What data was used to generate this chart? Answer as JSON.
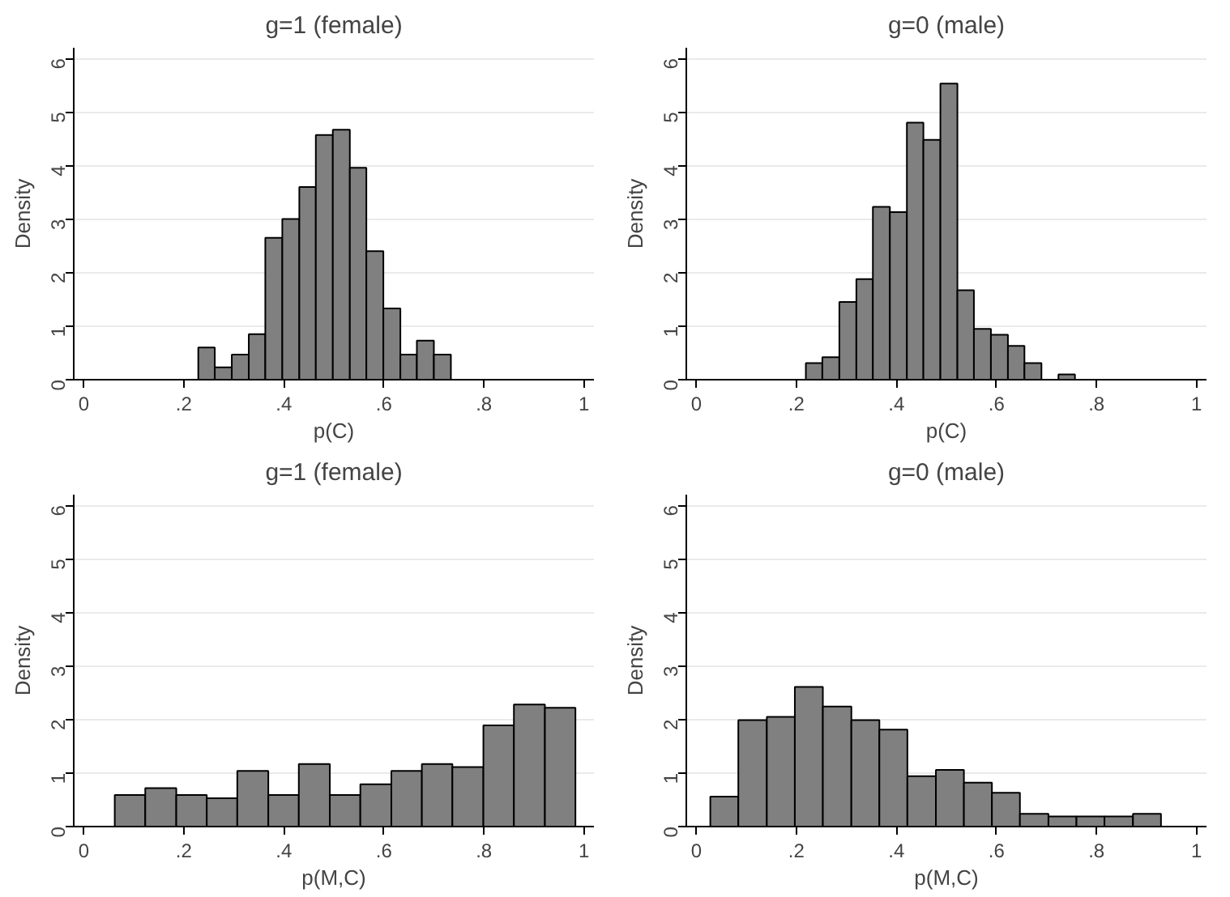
{
  "chart_data": [
    {
      "type": "histogram",
      "title": "g=1 (female)",
      "xlabel": "p(C)",
      "ylabel": "Density",
      "color": "#808080",
      "grid": "y",
      "bins": [
        0.229,
        0.262,
        0.296,
        0.33,
        0.363,
        0.397,
        0.431,
        0.464,
        0.498,
        0.532,
        0.565,
        0.599,
        0.633,
        0.666,
        0.7,
        0.734
      ],
      "values": [
        0.6,
        0.23,
        0.47,
        0.85,
        2.65,
        3.0,
        3.6,
        4.57,
        4.67,
        3.96,
        2.4,
        1.33,
        0.47,
        0.73,
        0.47
      ],
      "xlim": [
        -0.02,
        1.02
      ],
      "ylim": [
        0,
        6.2
      ],
      "xticks": [
        0,
        {
          "value": 0.2,
          "label": ".2"
        },
        {
          "value": 0.4,
          "label": ".4"
        },
        {
          "value": 0.6,
          "label": ".6"
        },
        {
          "value": 0.8,
          "label": ".8"
        },
        1
      ],
      "yticks": [
        0,
        1,
        2,
        3,
        4,
        5,
        6
      ]
    },
    {
      "type": "histogram",
      "title": "g=0 (male)",
      "xlabel": "p(C)",
      "ylabel": "Density",
      "color": "#808080",
      "grid": "y",
      "bins": [
        0.219,
        0.252,
        0.286,
        0.32,
        0.353,
        0.387,
        0.421,
        0.454,
        0.488,
        0.522,
        0.555,
        0.589,
        0.623,
        0.656,
        0.69,
        0.724,
        0.757
      ],
      "values": [
        0.31,
        0.42,
        1.45,
        1.88,
        3.23,
        3.13,
        4.8,
        4.48,
        5.53,
        1.67,
        0.95,
        0.84,
        0.63,
        0.31,
        null,
        0.1
      ],
      "xlim": [
        -0.02,
        1.02
      ],
      "ylim": [
        0,
        6.2
      ],
      "xticks": [
        0,
        {
          "value": 0.2,
          "label": ".2"
        },
        {
          "value": 0.4,
          "label": ".4"
        },
        {
          "value": 0.6,
          "label": ".6"
        },
        {
          "value": 0.8,
          "label": ".8"
        },
        1
      ],
      "yticks": [
        0,
        1,
        2,
        3,
        4,
        5,
        6
      ]
    },
    {
      "type": "histogram",
      "title": "g=1 (female)",
      "xlabel": "p(M,C)",
      "ylabel": "Density",
      "color": "#808080",
      "grid": "y",
      "bins": [
        0.062,
        0.123,
        0.185,
        0.246,
        0.307,
        0.369,
        0.43,
        0.492,
        0.553,
        0.615,
        0.676,
        0.737,
        0.799,
        0.86,
        0.922,
        0.983
      ],
      "values": [
        0.59,
        0.72,
        0.59,
        0.53,
        1.04,
        0.59,
        1.17,
        0.59,
        0.79,
        1.04,
        1.17,
        1.11,
        1.89,
        2.28,
        2.22
      ],
      "xlim": [
        -0.02,
        1.02
      ],
      "ylim": [
        0,
        6.2
      ],
      "xticks": [
        0,
        {
          "value": 0.2,
          "label": ".2"
        },
        {
          "value": 0.4,
          "label": ".4"
        },
        {
          "value": 0.6,
          "label": ".6"
        },
        {
          "value": 0.8,
          "label": ".8"
        },
        1
      ],
      "yticks": [
        0,
        1,
        2,
        3,
        4,
        5,
        6
      ]
    },
    {
      "type": "histogram",
      "title": "g=0 (male)",
      "xlabel": "p(M,C)",
      "ylabel": "Density",
      "color": "#808080",
      "grid": "y",
      "bins": [
        0.028,
        0.084,
        0.141,
        0.197,
        0.253,
        0.31,
        0.366,
        0.422,
        0.479,
        0.535,
        0.591,
        0.647,
        0.704,
        0.76,
        0.816,
        0.873,
        0.929
      ],
      "values": [
        0.56,
        1.99,
        2.05,
        2.61,
        2.24,
        1.99,
        1.81,
        0.94,
        1.06,
        0.82,
        0.63,
        0.24,
        0.19,
        0.19,
        0.19,
        0.24
      ],
      "xlim": [
        -0.02,
        1.02
      ],
      "ylim": [
        0,
        6.2
      ],
      "xticks": [
        0,
        {
          "value": 0.2,
          "label": ".2"
        },
        {
          "value": 0.4,
          "label": ".4"
        },
        {
          "value": 0.6,
          "label": ".6"
        },
        {
          "value": 0.8,
          "label": ".8"
        },
        1
      ],
      "yticks": [
        0,
        1,
        2,
        3,
        4,
        5,
        6
      ]
    }
  ]
}
